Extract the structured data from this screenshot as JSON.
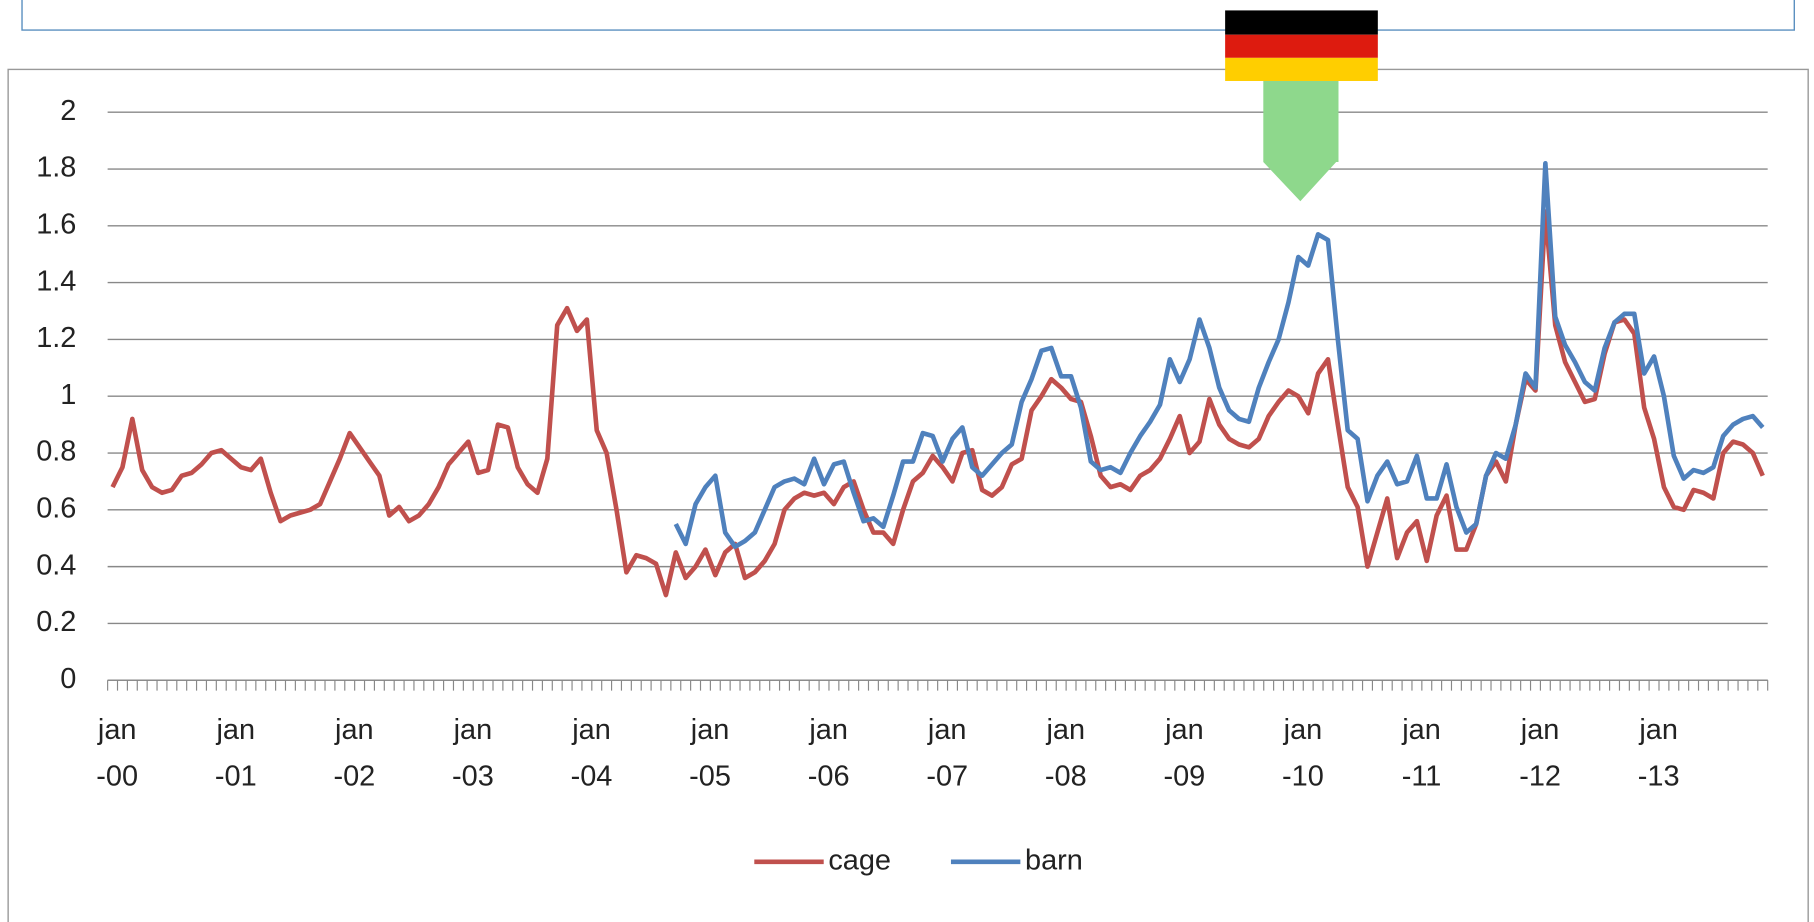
{
  "chart_data": {
    "type": "line",
    "categories": [
      "jan\n-00",
      null,
      null,
      null,
      null,
      null,
      null,
      null,
      null,
      null,
      null,
      null,
      "jan\n-01",
      null,
      null,
      null,
      null,
      null,
      null,
      null,
      null,
      null,
      null,
      null,
      "jan\n-02",
      null,
      null,
      null,
      null,
      null,
      null,
      null,
      null,
      null,
      null,
      null,
      "jan\n-03",
      null,
      null,
      null,
      null,
      null,
      null,
      null,
      null,
      null,
      null,
      null,
      "jan\n-04",
      null,
      null,
      null,
      null,
      null,
      null,
      null,
      null,
      null,
      null,
      null,
      "jan\n-05",
      null,
      null,
      null,
      null,
      null,
      null,
      null,
      null,
      null,
      null,
      null,
      "jan\n-06",
      null,
      null,
      null,
      null,
      null,
      null,
      null,
      null,
      null,
      null,
      null,
      "jan\n-07",
      null,
      null,
      null,
      null,
      null,
      null,
      null,
      null,
      null,
      null,
      null,
      "jan\n-08",
      null,
      null,
      null,
      null,
      null,
      null,
      null,
      null,
      null,
      null,
      null,
      "jan\n-09",
      null,
      null,
      null,
      null,
      null,
      null,
      null,
      null,
      null,
      null,
      null,
      "jan\n-10",
      null,
      null,
      null,
      null,
      null,
      null,
      null,
      null,
      null,
      null,
      null,
      "jan\n-11",
      null,
      null,
      null,
      null,
      null,
      null,
      null,
      null,
      null,
      null,
      null,
      "jan\n-12",
      null,
      null,
      null,
      null,
      null,
      null,
      null,
      null,
      null,
      null,
      null,
      "jan\n-13",
      null,
      null,
      null,
      null,
      null,
      null,
      null,
      null,
      null,
      null,
      null
    ],
    "series": [
      {
        "name": "cage",
        "color": "#c0504d",
        "values": [
          0.68,
          0.75,
          0.92,
          0.74,
          0.68,
          0.66,
          0.67,
          0.72,
          0.73,
          0.76,
          0.8,
          0.81,
          0.78,
          0.75,
          0.74,
          0.78,
          0.66,
          0.56,
          0.58,
          0.59,
          0.6,
          0.62,
          0.7,
          0.78,
          0.87,
          0.82,
          0.77,
          0.72,
          0.58,
          0.61,
          0.56,
          0.58,
          0.62,
          0.68,
          0.76,
          0.8,
          0.84,
          0.73,
          0.74,
          0.9,
          0.89,
          0.75,
          0.69,
          0.66,
          0.78,
          1.25,
          1.31,
          1.23,
          1.27,
          0.88,
          0.8,
          0.6,
          0.38,
          0.44,
          0.43,
          0.41,
          0.3,
          0.45,
          0.36,
          0.4,
          0.46,
          0.37,
          0.45,
          0.48,
          0.36,
          0.38,
          0.42,
          0.48,
          0.6,
          0.64,
          0.66,
          0.65,
          0.66,
          0.62,
          0.68,
          0.7,
          0.6,
          0.52,
          0.52,
          0.48,
          0.6,
          0.7,
          0.73,
          0.79,
          0.75,
          0.7,
          0.8,
          0.81,
          0.67,
          0.65,
          0.68,
          0.76,
          0.78,
          0.95,
          1.0,
          1.06,
          1.03,
          0.99,
          0.98,
          0.86,
          0.72,
          0.68,
          0.69,
          0.67,
          0.72,
          0.74,
          0.78,
          0.85,
          0.93,
          0.8,
          0.84,
          0.99,
          0.9,
          0.85,
          0.83,
          0.82,
          0.85,
          0.93,
          0.98,
          1.02,
          1.0,
          0.94,
          1.08,
          1.13,
          0.9,
          0.68,
          0.61,
          0.4,
          0.52,
          0.64,
          0.43,
          0.52,
          0.56,
          0.42,
          0.58,
          0.65,
          0.46,
          0.46,
          0.55,
          0.72,
          0.77,
          0.7,
          0.9,
          1.06,
          1.02,
          1.65,
          1.25,
          1.12,
          1.05,
          0.98,
          0.99,
          1.15,
          1.26,
          1.27,
          1.22,
          0.96,
          0.85,
          0.68,
          0.61,
          0.6,
          0.67,
          0.66,
          0.64,
          0.8,
          0.84,
          0.83,
          0.8,
          0.72
        ]
      },
      {
        "name": "barn",
        "color": "#4f81bd",
        "values": [
          null,
          null,
          null,
          null,
          null,
          null,
          null,
          null,
          null,
          null,
          null,
          null,
          null,
          null,
          null,
          null,
          null,
          null,
          null,
          null,
          null,
          null,
          null,
          null,
          null,
          null,
          null,
          null,
          null,
          null,
          null,
          null,
          null,
          null,
          null,
          null,
          null,
          null,
          null,
          null,
          null,
          null,
          null,
          null,
          null,
          null,
          null,
          null,
          null,
          null,
          null,
          null,
          null,
          null,
          null,
          null,
          null,
          0.55,
          0.48,
          0.62,
          0.68,
          0.72,
          0.52,
          0.47,
          0.49,
          0.52,
          0.6,
          0.68,
          0.7,
          0.71,
          0.69,
          0.78,
          0.69,
          0.76,
          0.77,
          0.66,
          0.56,
          0.57,
          0.54,
          0.65,
          0.77,
          0.77,
          0.87,
          0.86,
          0.77,
          0.85,
          0.89,
          0.75,
          0.72,
          0.76,
          0.8,
          0.83,
          0.98,
          1.06,
          1.16,
          1.17,
          1.07,
          1.07,
          0.96,
          0.77,
          0.74,
          0.75,
          0.73,
          0.8,
          0.86,
          0.91,
          0.97,
          1.13,
          1.05,
          1.13,
          1.27,
          1.17,
          1.03,
          0.95,
          0.92,
          0.91,
          1.03,
          1.12,
          1.2,
          1.33,
          1.49,
          1.46,
          1.57,
          1.55,
          1.2,
          0.88,
          0.85,
          0.63,
          0.72,
          0.77,
          0.69,
          0.7,
          0.79,
          0.64,
          0.64,
          0.76,
          0.61,
          0.52,
          0.55,
          0.72,
          0.8,
          0.78,
          0.9,
          1.08,
          1.03,
          1.82,
          1.28,
          1.18,
          1.12,
          1.05,
          1.02,
          1.17,
          1.26,
          1.29,
          1.29,
          1.08,
          1.14,
          1.0,
          0.79,
          0.71,
          0.74,
          0.73,
          0.75,
          0.86,
          0.9,
          0.92,
          0.93,
          0.89
        ]
      }
    ],
    "ylim": [
      0,
      2
    ],
    "yticks": [
      0,
      0.2,
      0.4,
      0.6,
      0.8,
      1,
      1.2,
      1.4,
      1.6,
      1.8,
      2
    ],
    "grid": true,
    "legend": "bottom"
  }
}
